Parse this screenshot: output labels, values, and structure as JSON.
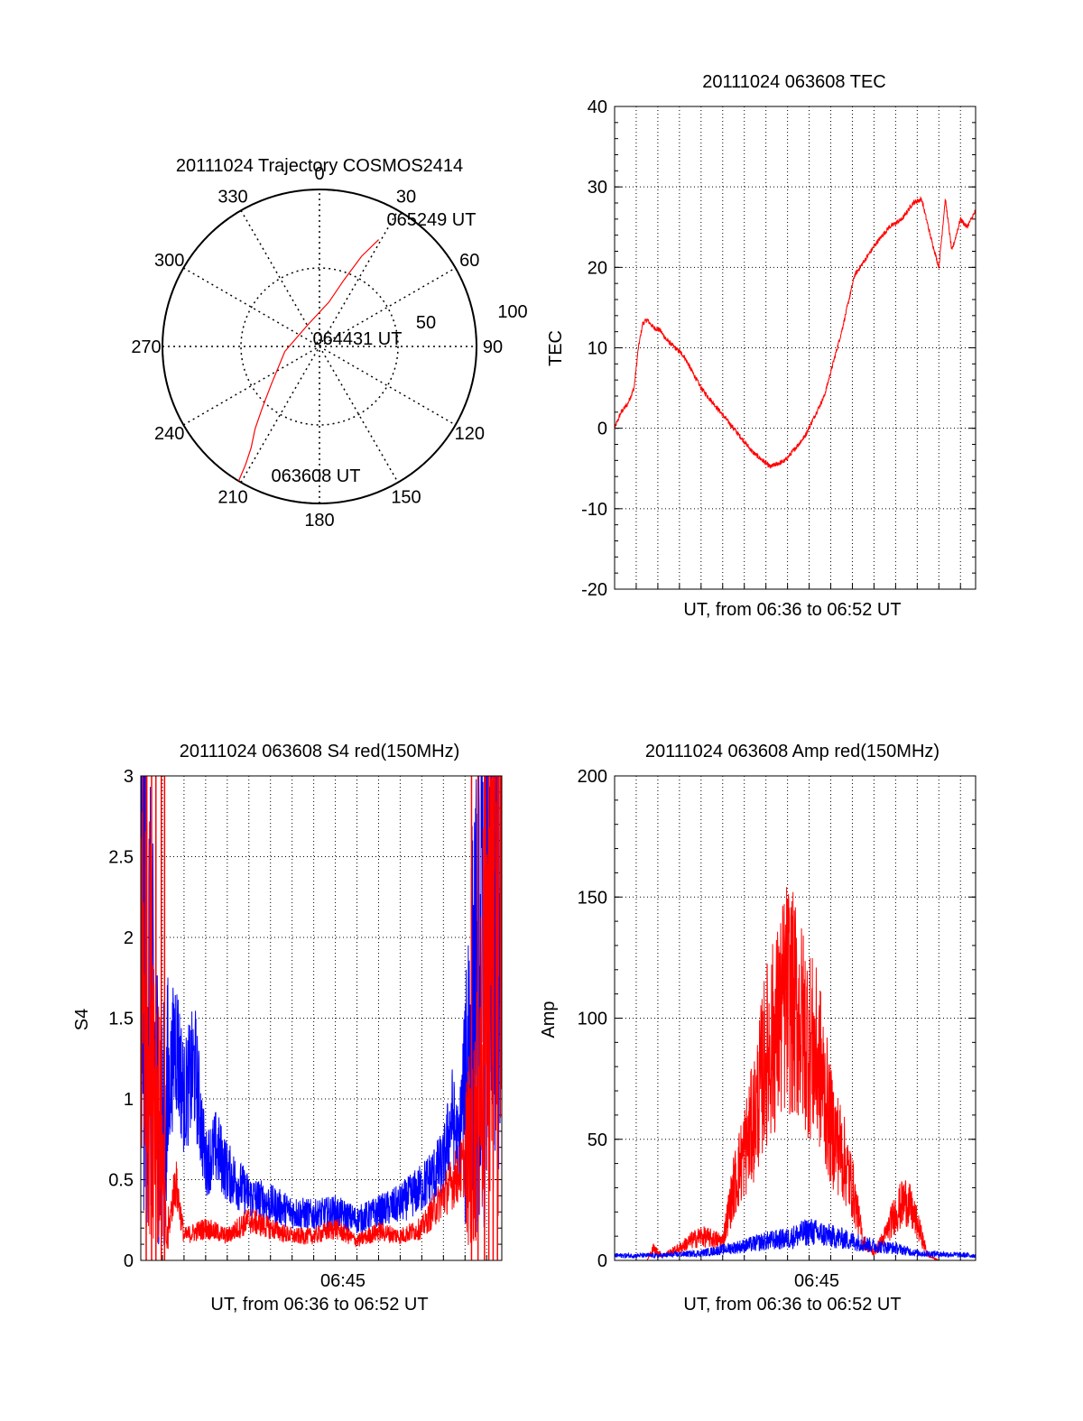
{
  "colors": {
    "red": "#ff0000",
    "blue": "#0000ff",
    "axis": "#000000",
    "grid": "#000000"
  },
  "chart_data": [
    {
      "type": "polar",
      "title": "20111024 Trajectory COSMOS2414",
      "angle_ticks": [
        "0",
        "30",
        "60",
        "90",
        "120",
        "150",
        "180",
        "210",
        "240",
        "270",
        "300",
        "330"
      ],
      "radial_ticks": [
        "50",
        "100"
      ],
      "grid": true,
      "annotations": [
        "065249 UT",
        "064431 UT",
        "063608 UT"
      ],
      "series": [
        {
          "color": "red",
          "points": [
            {
              "az": 211,
              "el": 0
            },
            {
              "az": 212,
              "el": 10
            },
            {
              "az": 214,
              "el": 20
            },
            {
              "az": 218,
              "el": 30
            },
            {
              "az": 223,
              "el": 42
            },
            {
              "az": 232,
              "el": 55
            },
            {
              "az": 262,
              "el": 70
            },
            {
              "az": 330,
              "el": 76
            },
            {
              "az": 12,
              "el": 64
            },
            {
              "az": 20,
              "el": 50
            },
            {
              "az": 25,
              "el": 33
            },
            {
              "az": 29,
              "el": 20
            }
          ]
        }
      ]
    },
    {
      "type": "line",
      "title": "20111024 063608 TEC",
      "xlabel": "UT, from 06:36 to 06:52 UT",
      "ylabel": "TEC",
      "xlim": [
        0,
        16.7
      ],
      "ylim": [
        -20,
        40
      ],
      "yticks": [
        "-20",
        "-10",
        "0",
        "10",
        "20",
        "30",
        "40"
      ],
      "grid": true,
      "series": [
        {
          "color": "red",
          "x": [
            0,
            0.3,
            0.6,
            0.9,
            1.1,
            1.3,
            1.5,
            1.8,
            2.1,
            2.4,
            3.2,
            4.0,
            5.2,
            6.4,
            7.2,
            7.9,
            8.8,
            9.7,
            10.5,
            11.1,
            11.6,
            12.1,
            12.7,
            13.3,
            13.8,
            14.2,
            14.6,
            15.0,
            15.3,
            15.6,
            16.0,
            16.3,
            16.7
          ],
          "y": [
            0,
            2,
            3,
            5,
            10,
            13,
            13.5,
            12.5,
            12.2,
            11,
            9,
            5,
            1,
            -3,
            -4.8,
            -4,
            -1,
            4,
            12,
            19,
            21,
            23,
            25,
            26,
            28,
            28.5,
            24,
            20,
            28.5,
            22,
            26,
            25,
            27
          ]
        }
      ]
    },
    {
      "type": "line",
      "title": "20111024 063608 S4 red(150MHz)",
      "xlabel": "UT, from 06:36 to 06:52 UT",
      "ylabel": "S4",
      "xtick_label": "06:45",
      "xlim": [
        0,
        16.7
      ],
      "ylim": [
        0,
        3
      ],
      "yticks": [
        "0",
        "0.5",
        "1",
        "1.5",
        "2",
        "2.5",
        "3"
      ],
      "grid": true,
      "series": [
        {
          "color": "blue",
          "x": [
            0,
            0.3,
            0.6,
            0.9,
            1.2,
            1.6,
            2.0,
            2.5,
            3.0,
            3.5,
            4.0,
            5.0,
            6.0,
            7.0,
            8.0,
            9.0,
            10.0,
            11.0,
            12.0,
            13.0,
            14.0,
            14.4,
            14.7,
            15.0,
            15.5,
            16.0,
            16.7
          ],
          "y": [
            2.5,
            1.8,
            1.3,
            0.8,
            0.9,
            1.4,
            1.0,
            1.2,
            0.6,
            0.7,
            0.55,
            0.4,
            0.35,
            0.3,
            0.28,
            0.3,
            0.25,
            0.3,
            0.35,
            0.45,
            0.6,
            0.9,
            0.7,
            1.2,
            1.6,
            1.9,
            1.8
          ]
        },
        {
          "color": "red",
          "x": [
            0,
            0.8,
            1.2,
            1.6,
            2.0,
            3.0,
            4.0,
            5.0,
            6.0,
            7.0,
            8.0,
            9.0,
            10.0,
            11.0,
            12.0,
            13.0,
            13.5,
            14.0,
            14.5,
            15.0,
            15.5,
            16.0,
            16.7
          ],
          "y": [
            2.0,
            1.0,
            0.1,
            0.5,
            0.15,
            0.2,
            0.15,
            0.25,
            0.2,
            0.15,
            0.15,
            0.2,
            0.12,
            0.18,
            0.15,
            0.2,
            0.3,
            0.4,
            0.5,
            0.6,
            0.8,
            1.8,
            2.6
          ]
        }
      ]
    },
    {
      "type": "line",
      "title": "20111024 063608 Amp red(150MHz)",
      "xlabel": "UT, from 06:36 to 06:52 UT",
      "ylabel": "Amp",
      "xtick_label": "06:45",
      "xlim": [
        0,
        16.7
      ],
      "ylim": [
        0,
        200
      ],
      "yticks": [
        "0",
        "50",
        "100",
        "150",
        "200"
      ],
      "grid": true,
      "series": [
        {
          "color": "red",
          "x": [
            0,
            1.5,
            1.8,
            2.2,
            3.0,
            3.5,
            4.0,
            5.0,
            5.5,
            6.0,
            6.5,
            7.0,
            7.5,
            8.0,
            8.5,
            9.0,
            9.5,
            10.0,
            10.5,
            11.0,
            11.5,
            12.0,
            12.5,
            13.0,
            13.5,
            14.0,
            14.5,
            15.0,
            16.7
          ],
          "y": [
            0,
            0,
            5,
            2,
            5,
            8,
            10,
            8,
            30,
            45,
            60,
            85,
            95,
            110,
            100,
            90,
            80,
            55,
            45,
            30,
            8,
            3,
            10,
            20,
            25,
            15,
            2,
            0,
            0
          ]
        },
        {
          "color": "blue",
          "x": [
            0,
            2.0,
            4.0,
            6.0,
            7.0,
            8.0,
            9.0,
            10.0,
            11.0,
            12.0,
            13.0,
            14.0,
            16.7
          ],
          "y": [
            2,
            2,
            3,
            6,
            8,
            9,
            12,
            10,
            8,
            6,
            5,
            3,
            2
          ]
        }
      ]
    }
  ]
}
